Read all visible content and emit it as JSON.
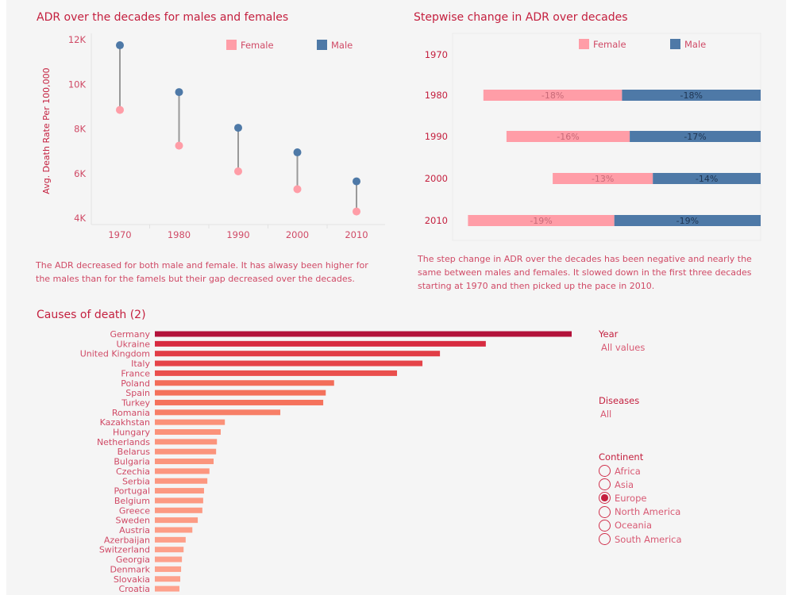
{
  "colors": {
    "female": "#ff9da7",
    "male": "#4e79a7",
    "accent": "#c4203f",
    "text": "#d04a66"
  },
  "chart_data": [
    {
      "type": "scatter",
      "subtype": "dumbbell",
      "title": "ADR over the decades for males and females",
      "ylabel": "Avg. Death Rate Per 100,000",
      "xlabel": "",
      "categories": [
        "1970",
        "1980",
        "1990",
        "2000",
        "2010"
      ],
      "yticks": [
        "4K",
        "6K",
        "8K",
        "10K",
        "12K"
      ],
      "ylim": [
        4000,
        12000
      ],
      "legend": {
        "placement": "top-right",
        "entries": [
          "Female",
          "Male"
        ]
      },
      "series": [
        {
          "name": "Female",
          "values": [
            8850,
            7250,
            6100,
            5300,
            4300
          ]
        },
        {
          "name": "Male",
          "values": [
            11750,
            9650,
            8050,
            6950,
            5650
          ]
        }
      ],
      "grid": false
    },
    {
      "type": "bar",
      "subtype": "stacked-horizontal",
      "title": "Stepwise change in ADR over decades",
      "categories": [
        "1970",
        "1980",
        "1990",
        "2000",
        "2010"
      ],
      "legend": {
        "placement": "top",
        "entries": [
          "Female",
          "Male"
        ]
      },
      "series": [
        {
          "name": "Female",
          "values": [
            null,
            -18,
            -16,
            -13,
            -19
          ],
          "labels": [
            "",
            "-18%",
            "-16%",
            "-13%",
            "-19%"
          ]
        },
        {
          "name": "Male",
          "values": [
            null,
            -18,
            -17,
            -14,
            -19
          ],
          "labels": [
            "",
            "-18%",
            "-17%",
            "-14%",
            "-19%"
          ]
        }
      ],
      "grid": false
    },
    {
      "type": "bar",
      "subtype": "horizontal",
      "title": "Causes of death (2)",
      "value_unit": "relative to max (%)",
      "categories": [
        "Germany",
        "Ukraine",
        "United Kingdom",
        "Italy",
        "France",
        "Poland",
        "Spain",
        "Turkey",
        "Romania",
        "Kazakhstan",
        "Hungary",
        "Netherlands",
        "Belarus",
        "Bulgaria",
        "Czechia",
        "Serbia",
        "Portugal",
        "Belgium",
        "Greece",
        "Sweden",
        "Austria",
        "Azerbaijan",
        "Switzerland",
        "Georgia",
        "Denmark",
        "Slovakia",
        "Croatia"
      ],
      "values": [
        100,
        79.4,
        68.4,
        64.2,
        58.1,
        43.0,
        41.0,
        40.4,
        30.1,
        16.8,
        15.8,
        14.9,
        14.7,
        14.1,
        13.1,
        12.6,
        11.8,
        11.6,
        11.4,
        10.3,
        9.0,
        7.4,
        6.9,
        6.5,
        6.3,
        6.1,
        5.9
      ],
      "grid": false
    }
  ],
  "notes": {
    "adr": "The ADR decreased for both male and female. It has alwasy been higher for the males than for the famels but their gap decreased over the decades.",
    "stepwise": "The step change in ADR over the decades has been negative and nearly the same between males and females. It slowed down in the first three decades starting at 1970 and then picked up the pace in 2010."
  },
  "filters": {
    "year": {
      "title": "Year",
      "value": "All values"
    },
    "diseases": {
      "title": "Diseases",
      "value": "All"
    },
    "continent": {
      "title": "Continent",
      "options": [
        {
          "label": "Africa",
          "selected": false
        },
        {
          "label": "Asia",
          "selected": false
        },
        {
          "label": "Europe",
          "selected": true
        },
        {
          "label": "North America",
          "selected": false
        },
        {
          "label": "Oceania",
          "selected": false
        },
        {
          "label": "South America",
          "selected": false
        }
      ]
    }
  }
}
